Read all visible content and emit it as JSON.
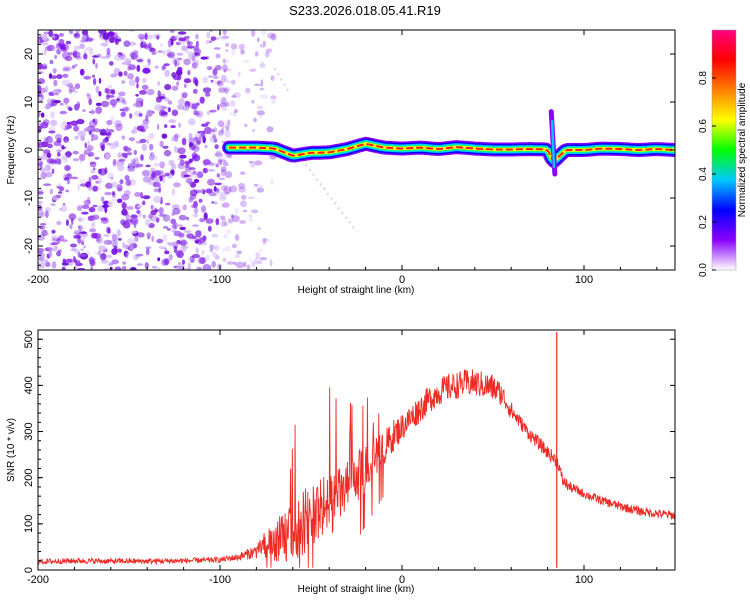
{
  "title": "S233.2026.018.05.41.R19",
  "chart_data": [
    {
      "type": "heatmap",
      "name": "spectrogram",
      "xlabel": "Height of straight line (km)",
      "ylabel": "Frequency (Hz)",
      "xlim": [
        -200,
        150
      ],
      "ylim": [
        -25,
        25
      ],
      "x_ticks": [
        "-200",
        "-100",
        "0",
        "100"
      ],
      "x_tick_values": [
        -200,
        -100,
        0,
        100
      ],
      "y_ticks": [
        "20",
        "10",
        "0",
        "-10",
        "-20"
      ],
      "y_tick_values": [
        20,
        10,
        0,
        -10,
        -20
      ],
      "colorbar": {
        "label": "Normalized spectral amplitude",
        "range": [
          0,
          1
        ],
        "ticks": [
          "0.0",
          "0.2",
          "0.4",
          "0.6",
          "0.8"
        ],
        "tick_values": [
          0,
          0.2,
          0.4,
          0.6,
          0.8
        ],
        "colors": [
          "#ffffff",
          "#8b00ff",
          "#0000ff",
          "#00c8ff",
          "#00ff00",
          "#ffff00",
          "#ff8000",
          "#ff0000",
          "#ff0080"
        ]
      },
      "noise_region_x": [
        -200,
        -80
      ],
      "signal_start_x": -95,
      "spike_x": 83,
      "ridge": {
        "x": [
          -95,
          -80,
          -70,
          -60,
          -50,
          -40,
          -30,
          -20,
          -10,
          0,
          10,
          20,
          30,
          40,
          50,
          60,
          70,
          80,
          83,
          90,
          100,
          110,
          120,
          130,
          140,
          150
        ],
        "freq": [
          0.5,
          0.5,
          0.3,
          -1.2,
          -0.6,
          -0.5,
          0.2,
          1.3,
          0.5,
          0.3,
          0.5,
          0.2,
          0.6,
          0.3,
          0.1,
          0.1,
          0.2,
          0.1,
          -2.5,
          0.0,
          0.0,
          0.3,
          0.2,
          0.0,
          0.2,
          0.0
        ]
      }
    },
    {
      "type": "line",
      "name": "snr",
      "xlabel": "Height of straight line (km)",
      "ylabel": "SNR (10 * v/v)",
      "xlim": [
        -200,
        150
      ],
      "ylim": [
        0,
        520
      ],
      "x_ticks": [
        "-200",
        "-100",
        "0",
        "100"
      ],
      "x_tick_values": [
        -200,
        -100,
        0,
        100
      ],
      "y_ticks": [
        "0",
        "100",
        "200",
        "300",
        "400",
        "500"
      ],
      "y_tick_values": [
        0,
        100,
        200,
        300,
        400,
        500
      ],
      "series": [
        {
          "name": "SNR",
          "color": "#ee2a24",
          "x": [
            -200,
            -180,
            -160,
            -140,
            -120,
            -100,
            -90,
            -80,
            -75,
            -70,
            -65,
            -60,
            -55,
            -50,
            -45,
            -40,
            -35,
            -30,
            -25,
            -20,
            -15,
            -10,
            -5,
            0,
            5,
            10,
            15,
            20,
            25,
            30,
            35,
            40,
            45,
            50,
            55,
            60,
            65,
            70,
            75,
            80,
            84,
            86,
            88,
            92,
            95,
            100,
            110,
            120,
            130,
            140,
            150
          ],
          "values": [
            18,
            20,
            19,
            19,
            20,
            22,
            28,
            40,
            55,
            60,
            70,
            80,
            100,
            120,
            130,
            140,
            160,
            180,
            200,
            220,
            240,
            260,
            290,
            310,
            330,
            350,
            370,
            385,
            395,
            400,
            405,
            405,
            400,
            395,
            380,
            345,
            320,
            295,
            275,
            255,
            240,
            230,
            195,
            180,
            175,
            165,
            150,
            138,
            128,
            122,
            118
          ],
          "noise_amplitude": [
            6,
            6,
            6,
            6,
            6,
            6,
            8,
            15,
            30,
            45,
            60,
            60,
            70,
            75,
            70,
            70,
            60,
            55,
            55,
            50,
            45,
            40,
            35,
            30,
            30,
            30,
            30,
            30,
            30,
            30,
            30,
            30,
            30,
            30,
            25,
            20,
            15,
            15,
            15,
            15,
            15,
            15,
            15,
            12,
            10,
            10,
            10,
            10,
            10,
            10,
            10
          ],
          "spike": {
            "x": 85,
            "max": 515,
            "min": 5
          }
        }
      ]
    }
  ]
}
